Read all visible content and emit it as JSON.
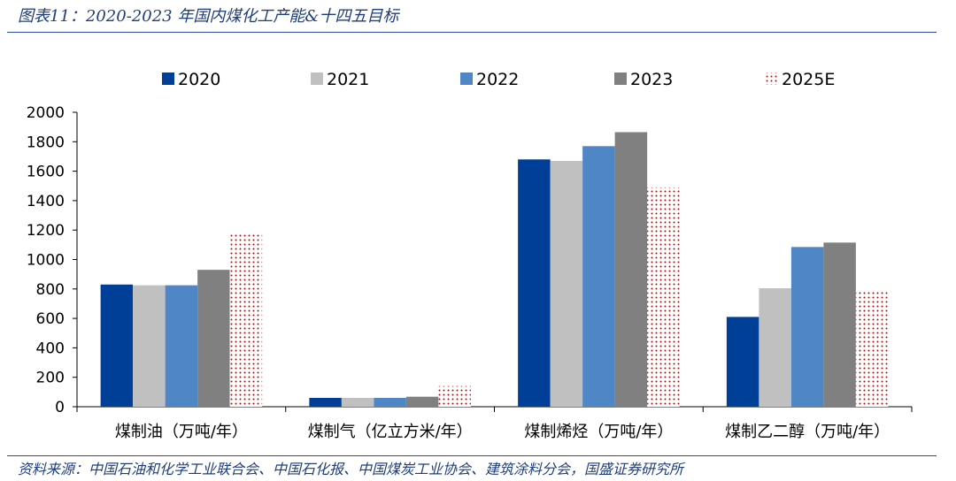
{
  "title": "图表11：2020-2023 年国内煤化工产能&十四五目标",
  "source": "资料来源：中国石油和化学工业联合会、中国石化报、中国煤炭工业协会、建筑涂料分会，国盛证券研究所",
  "chart_data": {
    "type": "bar",
    "categories": [
      "煤制油（万吨/年）",
      "煤制气（亿立方米/年）",
      "煤制烯烃（万吨/年）",
      "煤制乙二醇（万吨/年）"
    ],
    "series": [
      {
        "name": "2020",
        "color": "#003f98",
        "pattern": "solid",
        "values": [
          830,
          60,
          1680,
          610
        ]
      },
      {
        "name": "2021",
        "color": "#c0c0c0",
        "pattern": "solid",
        "values": [
          825,
          60,
          1670,
          805
        ]
      },
      {
        "name": "2022",
        "color": "#4f86c6",
        "pattern": "solid",
        "values": [
          825,
          60,
          1770,
          1085
        ]
      },
      {
        "name": "2023",
        "color": "#808080",
        "pattern": "solid",
        "values": [
          930,
          68,
          1865,
          1115
        ]
      },
      {
        "name": "2025E",
        "color": "#c00000",
        "pattern": "dotted",
        "values": [
          1180,
          140,
          1490,
          790
        ]
      }
    ],
    "ylim": [
      0,
      2000
    ],
    "yticks": [
      0,
      200,
      400,
      600,
      800,
      1000,
      1200,
      1400,
      1600,
      1800,
      2000
    ],
    "legend_position": "top",
    "grid": false
  }
}
